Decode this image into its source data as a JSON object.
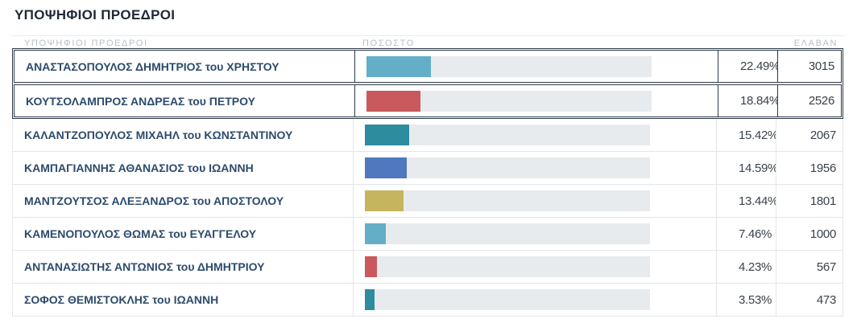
{
  "title": "ΥΠΟΨΗΦΙΟΙ ΠΡΟΕΔΡΟΙ",
  "headers": {
    "candidates": "ΥΠΟΨΗΦΙΟΙ ΠΡΟΕΔΡΟΙ",
    "percent": "ΠΟΣΟΣΤΟ",
    "received": "ΕΛΑΒΑΝ"
  },
  "table": {
    "rows": [
      {
        "name": "ΑΝΑΣΤΑΣΟΠΟΥΛΟΣ ΔΗΜΗΤΡΙΟΣ του ΧΡΗΣΤΟΥ",
        "percent": "22.49%",
        "percent_value": 22.49,
        "votes": "3015",
        "bar_color": "#64aec8",
        "highlighted": true
      },
      {
        "name": "ΚΟΥΤΣΟΛΑΜΠΡΟΣ ΑΝΔΡΕΑΣ του ΠΕΤΡΟΥ",
        "percent": "18.84%",
        "percent_value": 18.84,
        "votes": "2526",
        "bar_color": "#c9595c",
        "highlighted": true
      },
      {
        "name": "ΚΑΛΑΝΤΖΟΠΟΥΛΟΣ ΜΙΧΑΗΛ του ΚΩΝΣΤΑΝΤΙΝΟΥ",
        "percent": "15.42%",
        "percent_value": 15.42,
        "votes": "2067",
        "bar_color": "#2d8c9e",
        "highlighted": false
      },
      {
        "name": "ΚΑΜΠΑΓΙΑΝΝΗΣ ΑΘΑΝΑΣΙΟΣ του ΙΩΑΝΝΗ",
        "percent": "14.59%",
        "percent_value": 14.59,
        "votes": "1956",
        "bar_color": "#4f78be",
        "highlighted": false
      },
      {
        "name": "ΜΑΝΤΖΟΥΤΣΟΣ ΑΛΕΞΑΝΔΡΟΣ του ΑΠΟΣΤΟΛΟΥ",
        "percent": "13.44%",
        "percent_value": 13.44,
        "votes": "1801",
        "bar_color": "#c5b55e",
        "highlighted": false
      },
      {
        "name": "ΚΑΜΕΝΟΠΟΥΛΟΣ ΘΩΜΑΣ του ΕΥΑΓΓΕΛΟΥ",
        "percent": "7.46%",
        "percent_value": 7.46,
        "votes": "1000",
        "bar_color": "#64aec8",
        "highlighted": false
      },
      {
        "name": "ΑΝΤΑΝΑΣΙΩΤΗΣ ΑΝΤΩΝΙΟΣ του ΔΗΜΗΤΡΙΟΥ",
        "percent": "4.23%",
        "percent_value": 4.23,
        "votes": "567",
        "bar_color": "#c9595c",
        "highlighted": false
      },
      {
        "name": "ΣΟΦΟΣ ΘΕΜΙΣΤΟΚΛΗΣ του ΙΩΑΝΝΗ",
        "percent": "3.53%",
        "percent_value": 3.53,
        "votes": "473",
        "bar_color": "#2d8c9e",
        "highlighted": false
      }
    ]
  },
  "colors": {
    "highlight_border": "#2d3a47",
    "light_border": "#e2e6e9",
    "bar_track": "#e8ebee",
    "name_text": "#2c4b6c",
    "number_text": "#39424c",
    "header_text": "#b6bfc8",
    "title_text": "#1d2935"
  },
  "chart_data": {
    "type": "bar",
    "orientation": "horizontal",
    "title": "ΥΠΟΨΗΦΙΟΙ ΠΡΟΕΔΡΟΙ",
    "categories": [
      "ΑΝΑΣΤΑΣΟΠΟΥΛΟΣ ΔΗΜΗΤΡΙΟΣ του ΧΡΗΣΤΟΥ",
      "ΚΟΥΤΣΟΛΑΜΠΡΟΣ ΑΝΔΡΕΑΣ του ΠΕΤΡΟΥ",
      "ΚΑΛΑΝΤΖΟΠΟΥΛΟΣ ΜΙΧΑΗΛ του ΚΩΝΣΤΑΝΤΙΝΟΥ",
      "ΚΑΜΠΑΓΙΑΝΝΗΣ ΑΘΑΝΑΣΙΟΣ του ΙΩΑΝΝΗ",
      "ΜΑΝΤΖΟΥΤΣΟΣ ΑΛΕΞΑΝΔΡΟΣ του ΑΠΟΣΤΟΛΟΥ",
      "ΚΑΜΕΝΟΠΟΥΛΟΣ ΘΩΜΑΣ του ΕΥΑΓΓΕΛΟΥ",
      "ΑΝΤΑΝΑΣΙΩΤΗΣ ΑΝΤΩΝΙΟΣ του ΔΗΜΗΤΡΙΟΥ",
      "ΣΟΦΟΣ ΘΕΜΙΣΤΟΚΛΗΣ του ΙΩΑΝΝΗ"
    ],
    "series": [
      {
        "name": "ΠΟΣΟΣΤΟ",
        "unit": "%",
        "values": [
          22.49,
          18.84,
          15.42,
          14.59,
          13.44,
          7.46,
          4.23,
          3.53
        ]
      },
      {
        "name": "ΕΛΑΒΑΝ",
        "values": [
          3015,
          2526,
          2067,
          1956,
          1801,
          1000,
          567,
          473
        ]
      }
    ],
    "bar_colors": [
      "#64aec8",
      "#c9595c",
      "#2d8c9e",
      "#4f78be",
      "#c5b55e",
      "#64aec8",
      "#c9595c",
      "#2d8c9e"
    ],
    "xlim": [
      0,
      100
    ],
    "grid": false,
    "legend": false
  }
}
